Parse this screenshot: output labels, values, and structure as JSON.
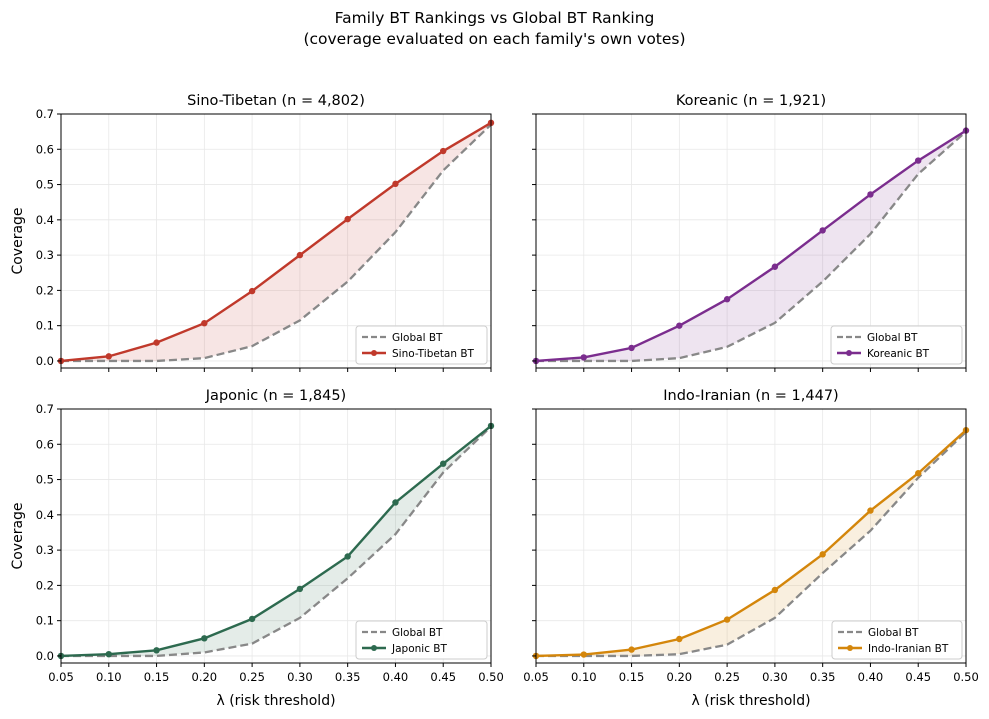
{
  "figure": {
    "title_line1": "Family BT Rankings vs Global BT Ranking",
    "title_line2": "(coverage evaluated on each family's own votes)"
  },
  "chart_data": [
    {
      "type": "line",
      "title": "Sino-Tibetan  (n = 4,802)",
      "xlabel": "",
      "ylabel": "Coverage",
      "xlim": [
        0.05,
        0.5
      ],
      "ylim": [
        -0.02,
        0.7
      ],
      "xticks": [
        "0.05",
        "0.10",
        "0.15",
        "0.20",
        "0.25",
        "0.30",
        "0.35",
        "0.40",
        "0.45",
        "0.50"
      ],
      "yticks": [
        "0.0",
        "0.1",
        "0.2",
        "0.3",
        "0.4",
        "0.5",
        "0.6",
        "0.7"
      ],
      "grid": true,
      "legend_position": "lower-right",
      "color": "#c0392b",
      "x": [
        0.05,
        0.1,
        0.15,
        0.2,
        0.25,
        0.3,
        0.35,
        0.4,
        0.45,
        0.5
      ],
      "series": [
        {
          "name": "Global BT",
          "style": "dashed",
          "color": "#888888",
          "values": [
            0.0,
            0.0,
            0.0,
            0.008,
            0.042,
            0.115,
            0.225,
            0.365,
            0.54,
            0.67
          ]
        },
        {
          "name": "Sino-Tibetan BT",
          "style": "solid-markers",
          "color": "#c0392b",
          "values": [
            0.0,
            0.013,
            0.052,
            0.107,
            0.198,
            0.3,
            0.402,
            0.502,
            0.595,
            0.675
          ]
        }
      ]
    },
    {
      "type": "line",
      "title": "Koreanic  (n = 1,921)",
      "xlabel": "",
      "ylabel": "",
      "xlim": [
        0.05,
        0.5
      ],
      "ylim": [
        -0.02,
        0.7
      ],
      "xticks": [
        "0.05",
        "0.10",
        "0.15",
        "0.20",
        "0.25",
        "0.30",
        "0.35",
        "0.40",
        "0.45",
        "0.50"
      ],
      "yticks": [
        "0.0",
        "0.1",
        "0.2",
        "0.3",
        "0.4",
        "0.5",
        "0.6",
        "0.7"
      ],
      "grid": true,
      "legend_position": "lower-right",
      "color": "#7b2d8e",
      "x": [
        0.05,
        0.1,
        0.15,
        0.2,
        0.25,
        0.3,
        0.35,
        0.4,
        0.45,
        0.5
      ],
      "series": [
        {
          "name": "Global BT",
          "style": "dashed",
          "color": "#888888",
          "values": [
            0.0,
            0.0,
            0.0,
            0.008,
            0.04,
            0.108,
            0.225,
            0.36,
            0.53,
            0.65
          ]
        },
        {
          "name": "Koreanic BT",
          "style": "solid-markers",
          "color": "#7b2d8e",
          "values": [
            0.0,
            0.01,
            0.037,
            0.1,
            0.175,
            0.267,
            0.37,
            0.472,
            0.568,
            0.653
          ]
        }
      ]
    },
    {
      "type": "line",
      "title": "Japonic  (n = 1,845)",
      "xlabel": "λ (risk threshold)",
      "ylabel": "Coverage",
      "xlim": [
        0.05,
        0.5
      ],
      "ylim": [
        -0.02,
        0.7
      ],
      "xticks": [
        "0.05",
        "0.10",
        "0.15",
        "0.20",
        "0.25",
        "0.30",
        "0.35",
        "0.40",
        "0.45",
        "0.50"
      ],
      "yticks": [
        "0.0",
        "0.1",
        "0.2",
        "0.3",
        "0.4",
        "0.5",
        "0.6",
        "0.7"
      ],
      "grid": true,
      "legend_position": "lower-right",
      "color": "#2d6a4f",
      "x": [
        0.05,
        0.1,
        0.15,
        0.2,
        0.25,
        0.3,
        0.35,
        0.4,
        0.45,
        0.5
      ],
      "series": [
        {
          "name": "Global BT",
          "style": "dashed",
          "color": "#888888",
          "values": [
            0.0,
            0.0,
            0.0,
            0.01,
            0.035,
            0.108,
            0.22,
            0.345,
            0.52,
            0.65
          ]
        },
        {
          "name": "Japonic BT",
          "style": "solid-markers",
          "color": "#2d6a4f",
          "values": [
            0.0,
            0.005,
            0.016,
            0.05,
            0.105,
            0.19,
            0.282,
            0.435,
            0.545,
            0.652
          ]
        }
      ]
    },
    {
      "type": "line",
      "title": "Indo-Iranian  (n = 1,447)",
      "xlabel": "λ (risk threshold)",
      "ylabel": "",
      "xlim": [
        0.05,
        0.5
      ],
      "ylim": [
        -0.02,
        0.7
      ],
      "xticks": [
        "0.05",
        "0.10",
        "0.15",
        "0.20",
        "0.25",
        "0.30",
        "0.35",
        "0.40",
        "0.45",
        "0.50"
      ],
      "yticks": [
        "0.0",
        "0.1",
        "0.2",
        "0.3",
        "0.4",
        "0.5",
        "0.6",
        "0.7"
      ],
      "grid": true,
      "legend_position": "lower-right",
      "color": "#d4860b",
      "x": [
        0.05,
        0.1,
        0.15,
        0.2,
        0.25,
        0.3,
        0.35,
        0.4,
        0.45,
        0.5
      ],
      "series": [
        {
          "name": "Global BT",
          "style": "dashed",
          "color": "#888888",
          "values": [
            0.0,
            0.0,
            0.0,
            0.005,
            0.032,
            0.108,
            0.235,
            0.355,
            0.505,
            0.635
          ]
        },
        {
          "name": "Indo-Iranian BT",
          "style": "solid-markers",
          "color": "#d4860b",
          "values": [
            0.0,
            0.004,
            0.018,
            0.048,
            0.103,
            0.187,
            0.288,
            0.412,
            0.518,
            0.64
          ]
        }
      ]
    }
  ]
}
